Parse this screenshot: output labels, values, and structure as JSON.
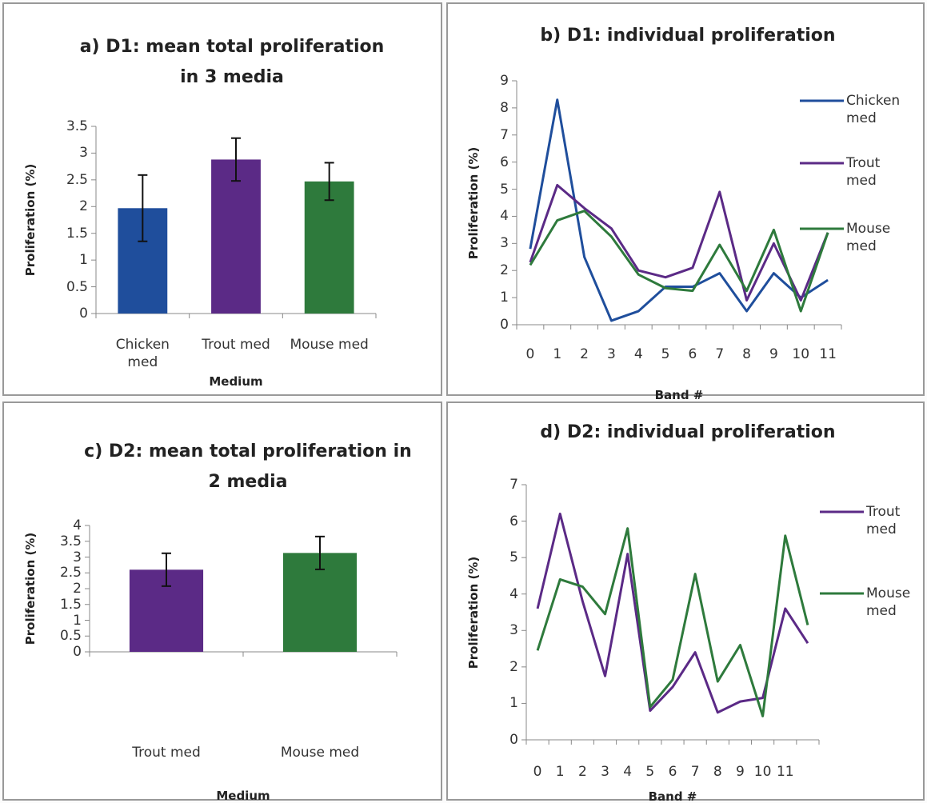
{
  "chart_data": [
    {
      "type": "bar",
      "title": "a) D1: mean total proliferation in 3 media",
      "x_label": "Medium",
      "y_label": "Proliferation (%)",
      "categories": [
        "Chicken med",
        "Trout med",
        "Mouse med"
      ],
      "values": [
        1.97,
        2.88,
        2.47
      ],
      "errors": [
        0.62,
        0.4,
        0.35
      ],
      "colors": [
        "#1f4e9c",
        "#5b2a86",
        "#2e7a3c"
      ],
      "ylim": [
        0,
        3.5
      ],
      "yticks": [
        0,
        0.5,
        1,
        1.5,
        2,
        2.5,
        3,
        3.5
      ]
    },
    {
      "type": "line",
      "title": "b) D1: individual proliferation",
      "x_label": "Band #",
      "y_label": "Proliferation (%)",
      "categories": [
        "0",
        "1",
        "2",
        "3",
        "4",
        "5",
        "6",
        "7",
        "8",
        "9",
        "10",
        "11"
      ],
      "series": [
        {
          "name": "Chicken med",
          "color": "#1f4e9c",
          "values": [
            2.8,
            8.3,
            2.5,
            0.15,
            0.5,
            1.4,
            1.4,
            1.9,
            0.5,
            1.9,
            1.0,
            1.65
          ]
        },
        {
          "name": "Trout med",
          "color": "#5b2a86",
          "values": [
            2.3,
            5.15,
            4.3,
            3.55,
            2.0,
            1.75,
            2.1,
            4.9,
            0.9,
            3.0,
            0.9,
            3.4
          ]
        },
        {
          "name": "Mouse med",
          "color": "#2e7a3c",
          "values": [
            2.2,
            3.85,
            4.2,
            3.25,
            1.85,
            1.35,
            1.25,
            2.95,
            1.25,
            3.5,
            0.5,
            3.4
          ]
        }
      ],
      "ylim": [
        0,
        9
      ],
      "yticks": [
        0,
        1,
        2,
        3,
        4,
        5,
        6,
        7,
        8,
        9
      ]
    },
    {
      "type": "bar",
      "title": "c) D2: mean total proliferation in 2 media",
      "x_label": "Medium",
      "y_label": "Proliferation (%)",
      "categories": [
        "Trout med",
        "Mouse med"
      ],
      "values": [
        2.6,
        3.13
      ],
      "errors": [
        0.52,
        0.52
      ],
      "colors": [
        "#5b2a86",
        "#2e7a3c"
      ],
      "ylim": [
        0,
        4
      ],
      "yticks": [
        0,
        0.5,
        1,
        1.5,
        2,
        2.5,
        3,
        3.5,
        4
      ]
    },
    {
      "type": "line",
      "title": "d) D2: individual proliferation",
      "x_label": "Band #",
      "y_label": "Proliferation (%)",
      "categories": [
        "0",
        "1",
        "2",
        "3",
        "4",
        "5",
        "6",
        "7",
        "8",
        "9",
        "10",
        "11",
        null
      ],
      "series": [
        {
          "name": "Trout med",
          "color": "#5b2a86",
          "values": [
            3.6,
            6.2,
            3.8,
            1.75,
            5.1,
            0.8,
            1.45,
            2.4,
            0.75,
            1.05,
            1.15,
            3.6,
            2.65
          ]
        },
        {
          "name": "Mouse med",
          "color": "#2e7a3c",
          "values": [
            2.45,
            4.4,
            4.2,
            3.45,
            5.8,
            0.9,
            1.65,
            4.55,
            1.6,
            2.6,
            0.65,
            5.6,
            3.15
          ]
        }
      ],
      "ylim": [
        0,
        7
      ],
      "yticks": [
        0,
        1,
        2,
        3,
        4,
        5,
        6,
        7
      ]
    }
  ]
}
